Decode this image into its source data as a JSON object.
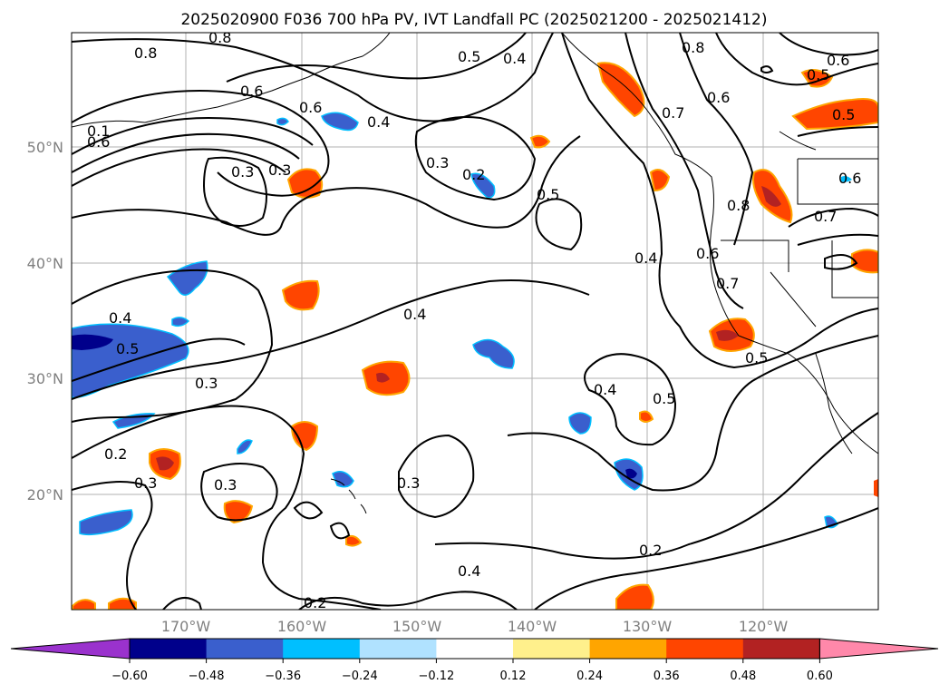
{
  "title": "2025020900 F036 700 hPa PV, IVT Landfall PC (2025021200 - 2025021412)",
  "lat_labels": [
    "50°N",
    "40°N",
    "30°N",
    "20°N"
  ],
  "lon_labels": [
    "170°W",
    "160°W",
    "150°W",
    "140°W",
    "130°W",
    "120°W"
  ],
  "contour_labels": [
    "0.8",
    "0.8",
    "0.5",
    "0.4",
    "0.8",
    "0.6",
    "0.5",
    "0.6",
    "0.6",
    "0.6",
    "0.4",
    "0.3",
    "0.2",
    "0.3",
    "0.5",
    "0.5",
    "0.3",
    "0.8",
    "0.6",
    "0.7",
    "0.6",
    "0.4",
    "0.6",
    "0.4",
    "0.5",
    "0.4",
    "0.3",
    "0.5",
    "0.2",
    "0.3",
    "0.3",
    "0.3",
    "0.4",
    "0.5",
    "0.4",
    "0.2",
    "0.2",
    "0.1",
    "0.7",
    "0.7"
  ],
  "colorbar": {
    "ticks": [
      "−0.60",
      "−0.48",
      "−0.36",
      "−0.24",
      "−0.12",
      "0.12",
      "0.24",
      "0.36",
      "0.48",
      "0.60"
    ],
    "colors": [
      "#9a32cd",
      "#00008b",
      "#3a5fcd",
      "#00bfff",
      "#b0e2ff",
      "#ffffff",
      "#fff08c",
      "#ffa500",
      "#ff4500",
      "#b22222",
      "#ff88aa"
    ]
  }
}
